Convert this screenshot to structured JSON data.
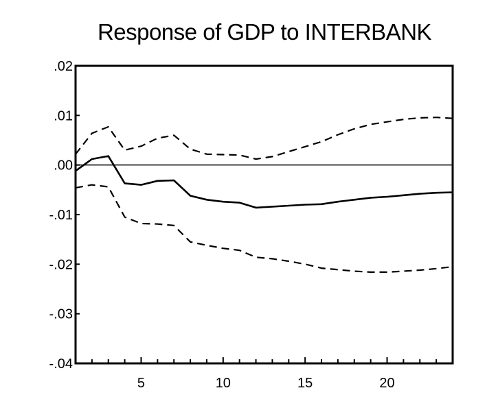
{
  "chart_data": {
    "type": "line",
    "title": "Response of GDP to INTERBANK",
    "xlabel": "",
    "ylabel": "",
    "xlim": [
      1,
      24
    ],
    "ylim": [
      -0.04,
      0.02
    ],
    "x_ticks": [
      5,
      10,
      15,
      20
    ],
    "x_tick_labels": [
      "5",
      "10",
      "15",
      "20"
    ],
    "y_ticks": [
      0.02,
      0.01,
      0.0,
      -0.01,
      -0.02,
      -0.03,
      -0.04
    ],
    "y_tick_labels": [
      ".02",
      ".01",
      ".00",
      "-.01",
      "-.02",
      "-.03",
      "-.04"
    ],
    "grid": false,
    "legend": "none",
    "zero_line": 0.0,
    "x": [
      1,
      2,
      3,
      4,
      5,
      6,
      7,
      8,
      9,
      10,
      11,
      12,
      13,
      14,
      15,
      16,
      17,
      18,
      19,
      20,
      21,
      22,
      23,
      24
    ],
    "series": [
      {
        "style": "solid",
        "values": [
          -0.0012,
          0.0012,
          0.0018,
          -0.0037,
          -0.004,
          -0.0032,
          -0.0031,
          -0.0062,
          -0.007,
          -0.0074,
          -0.0076,
          -0.0086,
          -0.0084,
          -0.0082,
          -0.008,
          -0.0079,
          -0.0074,
          -0.007,
          -0.0066,
          -0.0064,
          -0.0061,
          -0.0058,
          -0.0056,
          -0.0055
        ]
      },
      {
        "style": "dashed",
        "values": [
          0.0022,
          0.0064,
          0.0077,
          0.003,
          0.0038,
          0.0054,
          0.006,
          0.0032,
          0.0022,
          0.0021,
          0.002,
          0.0012,
          0.0017,
          0.0027,
          0.0037,
          0.0047,
          0.0061,
          0.0073,
          0.0082,
          0.0087,
          0.0092,
          0.0095,
          0.0096,
          0.0094
        ]
      },
      {
        "style": "dashed",
        "values": [
          -0.0046,
          -0.004,
          -0.0044,
          -0.0105,
          -0.0118,
          -0.0119,
          -0.0122,
          -0.0155,
          -0.0162,
          -0.0168,
          -0.0172,
          -0.0186,
          -0.0189,
          -0.0194,
          -0.02,
          -0.0208,
          -0.0211,
          -0.0214,
          -0.0216,
          -0.0216,
          -0.0214,
          -0.0212,
          -0.0209,
          -0.0205
        ]
      }
    ]
  }
}
